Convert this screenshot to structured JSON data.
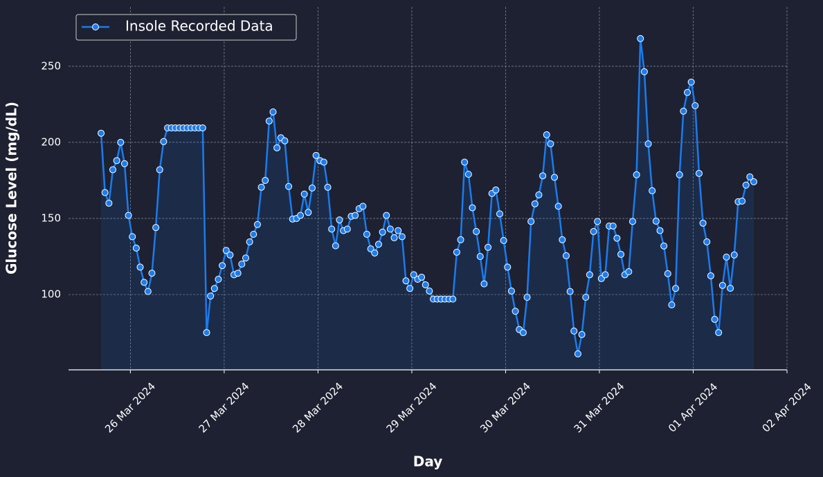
{
  "chart_data": {
    "type": "line",
    "xlabel": "Day",
    "ylabel": "Glucose Level (mg/dL)",
    "x": [
      "2024-03-25 16:30",
      "2024-03-25 17:30",
      "2024-03-25 18:30",
      "2024-03-25 19:30",
      "2024-03-25 20:30",
      "2024-03-25 21:30",
      "2024-03-25 22:30",
      "2024-03-25 23:30",
      "2024-03-26 00:30",
      "2024-03-26 01:30",
      "2024-03-26 02:30",
      "2024-03-26 03:30",
      "2024-03-26 04:30",
      "2024-03-26 05:30",
      "2024-03-26 06:30",
      "2024-03-26 07:30",
      "2024-03-26 08:30",
      "2024-03-26 09:30",
      "2024-03-26 10:30",
      "2024-03-26 11:30",
      "2024-03-26 12:30",
      "2024-03-26 13:30",
      "2024-03-26 14:30",
      "2024-03-26 15:30",
      "2024-03-26 16:30",
      "2024-03-26 17:30",
      "2024-03-26 18:30",
      "2024-03-26 19:30",
      "2024-03-26 20:30",
      "2024-03-26 21:30",
      "2024-03-26 22:30",
      "2024-03-26 23:30",
      "2024-03-27 00:30",
      "2024-03-27 01:30",
      "2024-03-27 02:30",
      "2024-03-27 03:30",
      "2024-03-27 04:30",
      "2024-03-27 05:30",
      "2024-03-27 06:30",
      "2024-03-27 07:30",
      "2024-03-27 08:30",
      "2024-03-27 09:30",
      "2024-03-27 10:30",
      "2024-03-27 11:30",
      "2024-03-27 12:30",
      "2024-03-27 13:30",
      "2024-03-27 14:30",
      "2024-03-27 15:30",
      "2024-03-27 16:30",
      "2024-03-27 17:30",
      "2024-03-27 18:30",
      "2024-03-27 19:30",
      "2024-03-27 20:30",
      "2024-03-27 21:30",
      "2024-03-27 22:30",
      "2024-03-27 23:30",
      "2024-03-28 00:30",
      "2024-03-28 01:30",
      "2024-03-28 02:30",
      "2024-03-28 03:30",
      "2024-03-28 04:30",
      "2024-03-28 05:30",
      "2024-03-28 06:30",
      "2024-03-28 07:30",
      "2024-03-28 08:30",
      "2024-03-28 09:30",
      "2024-03-28 10:30",
      "2024-03-28 11:30",
      "2024-03-28 12:30",
      "2024-03-28 13:30",
      "2024-03-28 14:30",
      "2024-03-28 15:30",
      "2024-03-28 16:30",
      "2024-03-28 17:30",
      "2024-03-28 18:30",
      "2024-03-28 19:30",
      "2024-03-28 20:30",
      "2024-03-28 21:30",
      "2024-03-28 22:30",
      "2024-03-28 23:30",
      "2024-03-29 00:30",
      "2024-03-29 01:30",
      "2024-03-29 02:30",
      "2024-03-29 03:30",
      "2024-03-29 04:30",
      "2024-03-29 05:30",
      "2024-03-29 06:30",
      "2024-03-29 07:30",
      "2024-03-29 08:30",
      "2024-03-29 09:30",
      "2024-03-29 10:30",
      "2024-03-29 11:30",
      "2024-03-29 12:30",
      "2024-03-29 13:30",
      "2024-03-29 14:30",
      "2024-03-29 15:30",
      "2024-03-29 16:30",
      "2024-03-29 17:30",
      "2024-03-29 18:30",
      "2024-03-29 19:30",
      "2024-03-29 20:30",
      "2024-03-29 21:30",
      "2024-03-29 22:30",
      "2024-03-29 23:30",
      "2024-03-30 00:30",
      "2024-03-30 01:30",
      "2024-03-30 02:30",
      "2024-03-30 03:30",
      "2024-03-30 04:30",
      "2024-03-30 05:30",
      "2024-03-30 06:30",
      "2024-03-30 07:30",
      "2024-03-30 08:30",
      "2024-03-30 09:30",
      "2024-03-30 10:30",
      "2024-03-30 11:30",
      "2024-03-30 12:30",
      "2024-03-30 13:30",
      "2024-03-30 14:30",
      "2024-03-30 15:30",
      "2024-03-30 16:30",
      "2024-03-30 17:30",
      "2024-03-30 18:30",
      "2024-03-30 19:30",
      "2024-03-30 20:30",
      "2024-03-30 21:30",
      "2024-03-30 22:30",
      "2024-03-30 23:30",
      "2024-03-31 00:30",
      "2024-03-31 01:30",
      "2024-03-31 02:30",
      "2024-03-31 03:30",
      "2024-03-31 04:30",
      "2024-03-31 05:30",
      "2024-03-31 06:30",
      "2024-03-31 07:30",
      "2024-03-31 08:30",
      "2024-03-31 09:30",
      "2024-03-31 10:30",
      "2024-03-31 11:30",
      "2024-03-31 12:30",
      "2024-03-31 13:30",
      "2024-03-31 14:30",
      "2024-03-31 15:30",
      "2024-03-31 16:30",
      "2024-03-31 17:30",
      "2024-03-31 18:30",
      "2024-03-31 19:30",
      "2024-03-31 20:30",
      "2024-03-31 21:30",
      "2024-03-31 22:30",
      "2024-03-31 23:30",
      "2024-04-01 00:30",
      "2024-04-01 01:30",
      "2024-04-01 02:30",
      "2024-04-01 03:30",
      "2024-04-01 04:30",
      "2024-04-01 05:30",
      "2024-04-01 06:30",
      "2024-04-01 07:30",
      "2024-04-01 08:30",
      "2024-04-01 09:30",
      "2024-04-01 10:30",
      "2024-04-01 11:30",
      "2024-04-01 12:30",
      "2024-04-01 13:30",
      "2024-04-01 14:30",
      "2024-04-01 15:30"
    ],
    "series": [
      {
        "name": "Insole Recorded Data",
        "color": "#1a7cf0",
        "values": [
          206,
          167,
          160,
          182,
          188,
          200,
          186,
          152,
          138,
          130.5,
          118,
          108,
          102,
          114,
          144,
          182,
          200.5,
          209.5,
          209.5,
          209.5,
          209.5,
          209.5,
          209.5,
          209.5,
          209.5,
          209.5,
          209.5,
          75,
          99,
          104,
          110,
          119,
          129,
          126,
          113,
          114,
          120,
          124,
          134.6,
          139.6,
          146,
          170.5,
          175,
          214,
          220,
          196.4,
          203,
          201,
          171,
          149.6,
          150,
          152,
          166,
          154,
          170,
          191.4,
          188,
          187,
          170.5,
          143,
          132,
          149,
          142,
          143,
          151.4,
          152,
          156.4,
          158,
          139.6,
          130,
          127.3,
          133,
          141,
          152,
          143,
          137.3,
          142,
          138,
          109,
          104,
          113,
          110,
          111.4,
          106.4,
          102.3,
          97,
          97,
          97,
          97,
          97,
          97,
          127.8,
          136,
          187,
          179,
          157,
          141.4,
          125,
          107,
          131,
          166.4,
          168.7,
          153,
          135.5,
          118,
          102.3,
          89,
          77,
          75,
          98.2,
          148,
          159.6,
          165.5,
          178,
          205,
          199,
          177,
          158,
          136,
          125.5,
          102,
          76,
          61,
          73.7,
          98.2,
          113,
          141.4,
          148,
          110.5,
          113,
          145,
          145,
          137,
          126.4,
          113,
          115,
          148,
          178.7,
          268.2,
          246.4,
          199,
          168.2,
          148.2,
          142,
          131.9,
          113.7,
          93.2,
          104,
          178.7,
          220.5,
          232.8,
          239.6,
          224.1,
          179.6,
          146.9,
          134.6,
          112.3,
          83.7,
          75,
          106,
          124.6,
          104.1,
          126,
          161,
          161.4,
          171.9,
          177.3,
          174.1
        ]
      }
    ],
    "xlim": [
      "2024-03-25 08:10",
      "2024-04-02 00:00"
    ],
    "xticks": [
      {
        "value": "2024-03-26",
        "label": "26 Mar 2024"
      },
      {
        "value": "2024-03-27",
        "label": "27 Mar 2024"
      },
      {
        "value": "2024-03-28",
        "label": "28 Mar 2024"
      },
      {
        "value": "2024-03-29",
        "label": "29 Mar 2024"
      },
      {
        "value": "2024-03-30",
        "label": "30 Mar 2024"
      },
      {
        "value": "2024-03-31",
        "label": "31 Mar 2024"
      },
      {
        "value": "2024-04-01",
        "label": "01 Apr 2024"
      },
      {
        "value": "2024-04-02",
        "label": "02 Apr 2024"
      }
    ],
    "ylim": [
      50.5,
      289
    ],
    "yticks": [
      100,
      150,
      200,
      250
    ],
    "grid": true,
    "fill_under": true,
    "legend": "upper left"
  }
}
